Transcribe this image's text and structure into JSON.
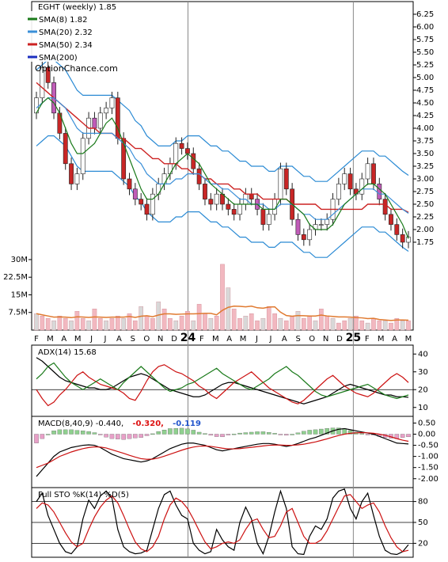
{
  "chart_data": [
    {
      "type": "candlestick",
      "panel": "price",
      "title": "EGHT (weekly) 1.85",
      "watermark": "OptionChance.com",
      "yticks": [
        "6.25",
        "6.00",
        "5.75",
        "5.50",
        "5.25",
        "5.00",
        "4.75",
        "4.50",
        "4.25",
        "4.00",
        "3.75",
        "3.50",
        "3.25",
        "3.00",
        "2.75",
        "2.50",
        "2.25",
        "2.00",
        "1.75"
      ],
      "ylim": [
        1.5,
        6.5
      ],
      "legend": [
        {
          "label": "SMA(8) 1.82",
          "color": "#1a7a1a"
        },
        {
          "label": "SMA(20) 2.32",
          "color": "#3a8fd8"
        },
        {
          "label": "SMA(50) 2.34",
          "color": "#cc2222"
        },
        {
          "label": "SMA(200)",
          "color": "#1c2fc0"
        }
      ],
      "close": [
        4.6,
        5.2,
        4.9,
        4.3,
        3.9,
        3.3,
        2.9,
        3.1,
        3.8,
        4.2,
        4.0,
        4.3,
        4.4,
        4.6,
        3.8,
        3.0,
        2.8,
        2.6,
        2.5,
        2.3,
        2.7,
        2.9,
        3.1,
        3.3,
        3.7,
        3.6,
        3.5,
        3.2,
        2.9,
        2.6,
        2.5,
        2.7,
        2.5,
        2.4,
        2.3,
        2.5,
        2.7,
        2.6,
        2.4,
        2.1,
        2.3,
        2.6,
        3.2,
        2.8,
        2.2,
        1.9,
        1.8,
        2.0,
        2.1,
        2.1,
        2.2,
        2.6,
        2.9,
        3.1,
        2.8,
        2.7,
        3.0,
        3.3,
        2.9,
        2.6,
        2.3,
        2.1,
        1.9,
        1.75,
        1.85
      ],
      "sma8": [
        4.3,
        4.5,
        4.6,
        4.5,
        4.3,
        4.0,
        3.7,
        3.5,
        3.5,
        3.6,
        3.7,
        3.9,
        4.1,
        4.2,
        4.0,
        3.7,
        3.4,
        3.1,
        2.8,
        2.6,
        2.6,
        2.7,
        2.9,
        3.1,
        3.3,
        3.4,
        3.5,
        3.4,
        3.3,
        3.1,
        2.9,
        2.8,
        2.7,
        2.6,
        2.5,
        2.5,
        2.5,
        2.5,
        2.5,
        2.4,
        2.4,
        2.4,
        2.6,
        2.6,
        2.5,
        2.4,
        2.3,
        2.1,
        2.0,
        2.0,
        2.0,
        2.1,
        2.3,
        2.5,
        2.6,
        2.7,
        2.8,
        2.9,
        2.9,
        2.8,
        2.7,
        2.5,
        2.3,
        2.1,
        1.82
      ],
      "sma20": [
        4.4,
        4.5,
        4.6,
        4.6,
        4.5,
        4.4,
        4.2,
        4.0,
        3.9,
        3.9,
        3.9,
        3.9,
        3.9,
        3.9,
        3.8,
        3.7,
        3.6,
        3.4,
        3.3,
        3.1,
        3.0,
        2.9,
        2.9,
        2.9,
        3.0,
        3.0,
        3.1,
        3.1,
        3.1,
        3.0,
        2.9,
        2.9,
        2.8,
        2.8,
        2.7,
        2.6,
        2.6,
        2.5,
        2.5,
        2.5,
        2.4,
        2.4,
        2.5,
        2.5,
        2.5,
        2.4,
        2.3,
        2.3,
        2.2,
        2.2,
        2.2,
        2.3,
        2.4,
        2.5,
        2.6,
        2.7,
        2.8,
        2.8,
        2.8,
        2.7,
        2.7,
        2.6,
        2.5,
        2.4,
        2.32
      ],
      "sma50": [
        4.9,
        4.8,
        4.7,
        4.6,
        4.5,
        4.4,
        4.3,
        4.2,
        4.1,
        4.0,
        4.0,
        3.9,
        3.9,
        3.9,
        3.8,
        3.8,
        3.7,
        3.6,
        3.6,
        3.5,
        3.4,
        3.4,
        3.3,
        3.3,
        3.3,
        3.2,
        3.2,
        3.1,
        3.1,
        3.0,
        3.0,
        2.9,
        2.9,
        2.9,
        2.8,
        2.8,
        2.7,
        2.7,
        2.7,
        2.6,
        2.6,
        2.6,
        2.6,
        2.6,
        2.5,
        2.5,
        2.5,
        2.5,
        2.5,
        2.4,
        2.4,
        2.4,
        2.4,
        2.4,
        2.4,
        2.4,
        2.4,
        2.5,
        2.5,
        2.5,
        2.5,
        2.4,
        2.4,
        2.4,
        2.34
      ],
      "volume_yticks": [
        "30M",
        "22.5M",
        "15M",
        "7.5M"
      ],
      "volume_ylim": [
        0,
        32
      ],
      "volume": [
        7,
        6,
        5,
        4,
        6,
        5,
        4,
        8,
        5,
        4,
        9,
        5,
        4,
        5,
        6,
        5,
        7,
        4,
        10,
        6,
        5,
        12,
        9,
        5,
        4,
        6,
        8,
        4,
        11,
        7,
        5,
        6,
        28,
        18,
        9,
        5,
        6,
        7,
        4,
        5,
        10,
        7,
        5,
        4,
        6,
        8,
        5,
        6,
        4,
        9,
        6,
        5,
        3,
        4,
        5,
        6,
        4,
        3,
        5,
        4,
        4,
        3,
        5,
        4,
        4
      ]
    },
    {
      "type": "line",
      "panel": "adx",
      "label": "ADX(14) 15.68",
      "yticks": [
        "40",
        "30",
        "20",
        "10"
      ],
      "ylim": [
        5,
        45
      ],
      "series": [
        {
          "color": "#000000",
          "values": [
            38,
            36,
            33,
            30,
            27,
            25,
            24,
            23,
            22,
            21,
            21,
            20,
            20,
            21,
            23,
            25,
            27,
            28,
            29,
            28,
            26,
            24,
            22,
            20,
            19,
            18,
            17,
            16,
            16,
            17,
            19,
            21,
            23,
            24,
            24,
            23,
            22,
            21,
            20,
            19,
            18,
            17,
            16,
            15,
            14,
            13,
            12,
            13,
            14,
            15,
            16,
            18,
            20,
            22,
            23,
            22,
            21,
            20,
            19,
            18,
            17,
            17,
            16,
            16,
            15.7
          ]
        },
        {
          "color": "#cc1111",
          "values": [
            20,
            15,
            11,
            13,
            17,
            20,
            24,
            28,
            30,
            27,
            25,
            23,
            22,
            21,
            20,
            18,
            15,
            14,
            19,
            25,
            30,
            33,
            34,
            32,
            30,
            29,
            27,
            25,
            22,
            20,
            17,
            15,
            18,
            21,
            24,
            26,
            28,
            30,
            27,
            24,
            21,
            19,
            17,
            15,
            13,
            12,
            14,
            17,
            20,
            23,
            26,
            28,
            25,
            22,
            20,
            18,
            17,
            16,
            18,
            21,
            24,
            27,
            29,
            27,
            24
          ]
        },
        {
          "color": "#1a7a1a",
          "values": [
            26,
            29,
            33,
            35,
            31,
            27,
            24,
            22,
            20,
            22,
            24,
            26,
            24,
            22,
            20,
            24,
            27,
            30,
            33,
            30,
            27,
            24,
            21,
            19,
            20,
            21,
            23,
            24,
            26,
            28,
            30,
            32,
            29,
            27,
            25,
            23,
            21,
            20,
            22,
            24,
            26,
            29,
            31,
            33,
            30,
            28,
            25,
            22,
            19,
            17,
            16,
            17,
            18,
            19,
            20,
            21,
            22,
            23,
            21,
            19,
            17,
            16,
            15,
            16,
            17
          ]
        }
      ]
    },
    {
      "type": "line",
      "panel": "macd",
      "label": "MACD(8,40,9) -0.440,",
      "label_signal": "-0.320,",
      "label_hist": "-0.119",
      "yticks": [
        "0.50",
        "0.00",
        "-0.50",
        "-1.00",
        "-1.50",
        "-2.00"
      ],
      "ylim": [
        -2.4,
        0.8
      ],
      "series": [
        {
          "name": "MACD",
          "color": "#000000",
          "values": [
            -1.9,
            -1.6,
            -1.3,
            -1.0,
            -0.8,
            -0.7,
            -0.6,
            -0.55,
            -0.5,
            -0.48,
            -0.5,
            -0.6,
            -0.75,
            -0.9,
            -1.0,
            -1.1,
            -1.15,
            -1.2,
            -1.25,
            -1.2,
            -1.1,
            -0.95,
            -0.8,
            -0.65,
            -0.55,
            -0.45,
            -0.4,
            -0.4,
            -0.45,
            -0.5,
            -0.6,
            -0.7,
            -0.75,
            -0.7,
            -0.65,
            -0.6,
            -0.55,
            -0.5,
            -0.45,
            -0.42,
            -0.42,
            -0.45,
            -0.5,
            -0.55,
            -0.5,
            -0.42,
            -0.32,
            -0.22,
            -0.15,
            -0.05,
            0.05,
            0.15,
            0.22,
            0.25,
            0.2,
            0.15,
            0.1,
            0.05,
            0.0,
            -0.1,
            -0.2,
            -0.3,
            -0.4,
            -0.42,
            -0.44
          ]
        },
        {
          "name": "Signal",
          "color": "#cc1111",
          "values": [
            -1.5,
            -1.4,
            -1.3,
            -1.15,
            -1.0,
            -0.9,
            -0.8,
            -0.72,
            -0.65,
            -0.6,
            -0.57,
            -0.58,
            -0.62,
            -0.7,
            -0.78,
            -0.86,
            -0.95,
            -1.03,
            -1.1,
            -1.13,
            -1.12,
            -1.07,
            -0.99,
            -0.9,
            -0.81,
            -0.72,
            -0.64,
            -0.58,
            -0.54,
            -0.53,
            -0.55,
            -0.59,
            -0.63,
            -0.66,
            -0.66,
            -0.65,
            -0.62,
            -0.59,
            -0.56,
            -0.53,
            -0.5,
            -0.49,
            -0.49,
            -0.5,
            -0.5,
            -0.48,
            -0.45,
            -0.4,
            -0.35,
            -0.28,
            -0.21,
            -0.13,
            -0.06,
            0.0,
            0.04,
            0.06,
            0.07,
            0.06,
            0.04,
            0.0,
            -0.05,
            -0.12,
            -0.2,
            -0.27,
            -0.32
          ]
        }
      ]
    },
    {
      "type": "line",
      "panel": "stochastic",
      "label": "Full STO %K(14) %D(5)",
      "yticks": [
        "80",
        "50",
        "20"
      ],
      "ylim": [
        0,
        100
      ],
      "series": [
        {
          "name": "%K",
          "color": "#000000",
          "values": [
            80,
            92,
            60,
            40,
            20,
            8,
            5,
            15,
            55,
            82,
            70,
            88,
            95,
            85,
            40,
            15,
            8,
            5,
            6,
            10,
            40,
            70,
            90,
            95,
            75,
            60,
            55,
            20,
            10,
            5,
            8,
            40,
            25,
            15,
            10,
            50,
            72,
            55,
            20,
            5,
            30,
            65,
            95,
            70,
            15,
            5,
            4,
            30,
            45,
            40,
            55,
            85,
            95,
            98,
            70,
            55,
            80,
            92,
            60,
            30,
            10,
            5,
            4,
            8,
            18
          ]
        },
        {
          "name": "%D",
          "color": "#cc1111",
          "values": [
            70,
            78,
            75,
            65,
            50,
            35,
            22,
            15,
            20,
            40,
            58,
            72,
            82,
            88,
            78,
            60,
            40,
            22,
            12,
            8,
            15,
            30,
            55,
            75,
            85,
            80,
            70,
            55,
            38,
            22,
            12,
            15,
            20,
            22,
            20,
            25,
            40,
            52,
            55,
            40,
            28,
            30,
            45,
            65,
            70,
            50,
            30,
            20,
            20,
            25,
            38,
            55,
            72,
            88,
            90,
            80,
            70,
            75,
            78,
            65,
            45,
            28,
            15,
            8,
            10
          ]
        }
      ]
    },
    {
      "type": "axis",
      "panel": "time",
      "x_labels": [
        "F",
        "M",
        "A",
        "M",
        "J",
        "J",
        "A",
        "S",
        "O",
        "N",
        "D",
        "24",
        "F",
        "M",
        "A",
        "M",
        "J",
        "J",
        "A",
        "S",
        "O",
        "N",
        "D",
        "25",
        "F",
        "M",
        "A",
        "M"
      ]
    }
  ]
}
